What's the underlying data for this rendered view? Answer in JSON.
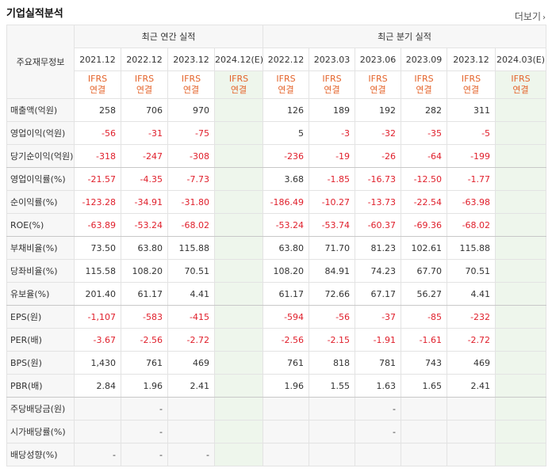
{
  "page": {
    "title": "기업실적분석",
    "more_label": "더보기"
  },
  "header": {
    "corner": "주요재무정보",
    "annual_group": "최근 연간 실적",
    "quarter_group": "최근 분기 실적",
    "periods": [
      "2021.12",
      "2022.12",
      "2023.12",
      "2024.12(E)",
      "2022.12",
      "2023.03",
      "2023.06",
      "2023.09",
      "2023.12",
      "2024.03(E)"
    ],
    "basis_line1": "IFRS",
    "basis_line2": "연결"
  },
  "rows": [
    {
      "label": "매출액(억원)",
      "values": [
        "258",
        "706",
        "970",
        "",
        "126",
        "189",
        "192",
        "282",
        "311",
        ""
      ]
    },
    {
      "label": "영업이익(억원)",
      "values": [
        "-56",
        "-31",
        "-75",
        "",
        "5",
        "-3",
        "-32",
        "-35",
        "-5",
        ""
      ]
    },
    {
      "label": "당기순이익(억원)",
      "values": [
        "-318",
        "-247",
        "-308",
        "",
        "-236",
        "-19",
        "-26",
        "-64",
        "-199",
        ""
      ]
    },
    {
      "label": "영업이익률(%)",
      "values": [
        "-21.57",
        "-4.35",
        "-7.73",
        "",
        "3.68",
        "-1.85",
        "-16.73",
        "-12.50",
        "-1.77",
        ""
      ]
    },
    {
      "label": "순이익률(%)",
      "values": [
        "-123.28",
        "-34.91",
        "-31.80",
        "",
        "-186.49",
        "-10.27",
        "-13.73",
        "-22.54",
        "-63.98",
        ""
      ]
    },
    {
      "label": "ROE(%)",
      "values": [
        "-63.89",
        "-53.24",
        "-68.02",
        "",
        "-53.24",
        "-53.74",
        "-60.37",
        "-69.36",
        "-68.02",
        ""
      ]
    },
    {
      "label": "부채비율(%)",
      "values": [
        "73.50",
        "63.80",
        "115.88",
        "",
        "63.80",
        "71.70",
        "81.23",
        "102.61",
        "115.88",
        ""
      ]
    },
    {
      "label": "당좌비율(%)",
      "values": [
        "115.58",
        "108.20",
        "70.51",
        "",
        "108.20",
        "84.91",
        "74.23",
        "67.70",
        "70.51",
        ""
      ]
    },
    {
      "label": "유보율(%)",
      "values": [
        "201.40",
        "61.17",
        "4.41",
        "",
        "61.17",
        "72.66",
        "67.17",
        "56.27",
        "4.41",
        ""
      ]
    },
    {
      "label": "EPS(원)",
      "values": [
        "-1,107",
        "-583",
        "-415",
        "",
        "-594",
        "-56",
        "-37",
        "-85",
        "-232",
        ""
      ]
    },
    {
      "label": "PER(배)",
      "values": [
        "-3.67",
        "-2.56",
        "-2.72",
        "",
        "-2.56",
        "-2.15",
        "-1.91",
        "-1.61",
        "-2.72",
        ""
      ]
    },
    {
      "label": "BPS(원)",
      "values": [
        "1,430",
        "761",
        "469",
        "",
        "761",
        "818",
        "781",
        "743",
        "469",
        ""
      ]
    },
    {
      "label": "PBR(배)",
      "values": [
        "2.84",
        "1.96",
        "2.41",
        "",
        "1.96",
        "1.55",
        "1.63",
        "1.65",
        "2.41",
        ""
      ]
    },
    {
      "label": "주당배당금(원)",
      "values": [
        "",
        "-",
        "",
        "",
        "",
        "",
        "-",
        "",
        "",
        ""
      ]
    },
    {
      "label": "시가배당률(%)",
      "values": [
        "",
        "-",
        "",
        "",
        "",
        "",
        "-",
        "",
        "",
        ""
      ]
    },
    {
      "label": "배당성향(%)",
      "values": [
        "-",
        "-",
        "-",
        "",
        "",
        "",
        "",
        "",
        "",
        ""
      ]
    }
  ],
  "colors": {
    "negative": "#e0202c",
    "accent": "#e4632a",
    "estimate_bg": "#eef6ec"
  }
}
